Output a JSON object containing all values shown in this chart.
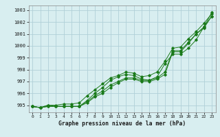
{
  "x": [
    0,
    1,
    2,
    3,
    4,
    5,
    6,
    7,
    8,
    9,
    10,
    11,
    12,
    13,
    14,
    15,
    16,
    17,
    18,
    19,
    20,
    21,
    22,
    23
  ],
  "line1": [
    994.9,
    994.8,
    995.0,
    994.9,
    994.9,
    994.9,
    994.9,
    995.3,
    995.8,
    996.2,
    996.7,
    997.0,
    997.3,
    997.3,
    997.1,
    997.1,
    997.3,
    997.8,
    999.6,
    999.6,
    1000.3,
    1001.0,
    1001.6,
    1002.5
  ],
  "line2": [
    994.9,
    994.8,
    994.9,
    994.9,
    994.9,
    994.9,
    994.9,
    995.4,
    996.0,
    996.5,
    997.1,
    997.4,
    997.6,
    997.5,
    997.2,
    997.1,
    997.4,
    998.5,
    999.3,
    999.3,
    999.8,
    1000.5,
    1001.6,
    1002.8
  ],
  "line3": [
    994.9,
    994.8,
    995.0,
    995.0,
    995.1,
    995.1,
    995.2,
    995.8,
    996.3,
    996.8,
    997.3,
    997.5,
    997.8,
    997.7,
    997.4,
    997.5,
    997.8,
    998.7,
    999.8,
    999.9,
    1000.6,
    1001.2,
    1001.9,
    1002.7
  ],
  "line4": [
    994.9,
    994.8,
    994.9,
    994.9,
    994.9,
    994.9,
    994.9,
    995.2,
    995.7,
    996.0,
    996.5,
    996.9,
    997.2,
    997.2,
    997.0,
    997.0,
    997.2,
    997.6,
    999.5,
    999.5,
    1000.2,
    1001.0,
    1001.5,
    1002.5
  ],
  "line_color": "#1a7a1a",
  "bg_color": "#d8eef0",
  "grid_color": "#b0d0d8",
  "xlabel": "Graphe pression niveau de la mer (hPa)",
  "ylim": [
    994.4,
    1003.4
  ],
  "yticks": [
    995,
    996,
    997,
    998,
    999,
    1000,
    1001,
    1002,
    1003
  ],
  "xticks": [
    0,
    1,
    2,
    3,
    4,
    5,
    6,
    7,
    8,
    9,
    10,
    11,
    12,
    13,
    14,
    15,
    16,
    17,
    18,
    19,
    20,
    21,
    22,
    23
  ]
}
